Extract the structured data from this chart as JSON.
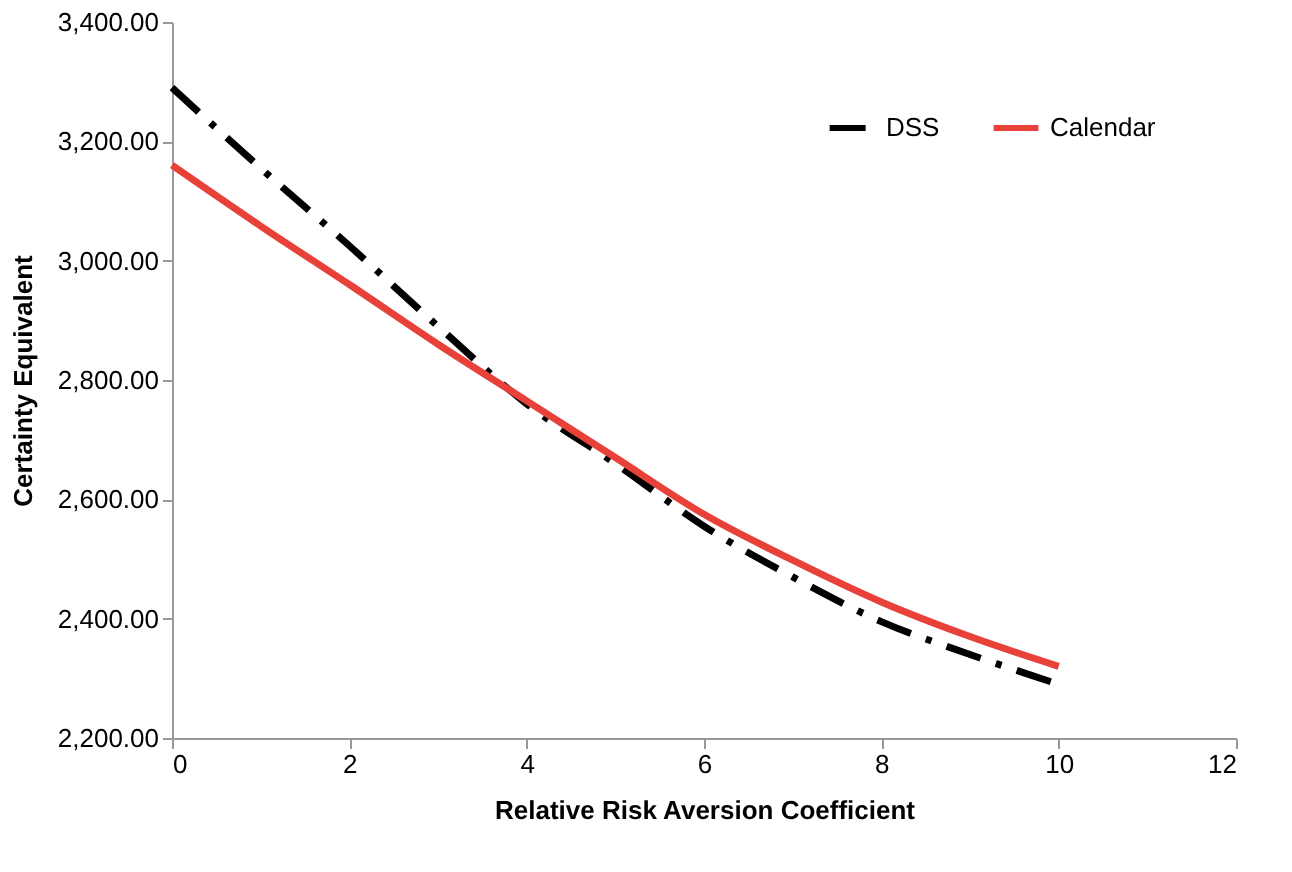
{
  "chart_data": {
    "type": "line",
    "xlabel": "Relative Risk Aversion Coefficient",
    "ylabel": "Certainty Equivalent",
    "x": [
      0,
      1,
      2,
      3,
      4,
      5,
      6,
      7,
      8,
      9,
      10
    ],
    "series": [
      {
        "name": "DSS",
        "color": "#000000",
        "line_style": "dashed",
        "values": [
          3290,
          3155,
          3025,
          2890,
          2760,
          2660,
          2555,
          2470,
          2395,
          2340,
          2290
        ]
      },
      {
        "name": "Calendar",
        "color": "#e8413a",
        "line_style": "solid",
        "values": [
          3160,
          3058,
          2960,
          2860,
          2765,
          2670,
          2575,
          2498,
          2428,
          2370,
          2320
        ]
      }
    ],
    "xlim": [
      0,
      12
    ],
    "xticks": [
      0,
      2,
      4,
      6,
      8,
      10,
      12
    ],
    "ylim": [
      2200,
      3400
    ],
    "yticks": [
      {
        "value": 2200,
        "label": "2,200.00"
      },
      {
        "value": 2400,
        "label": "2,400.00"
      },
      {
        "value": 2600,
        "label": "2,600.00"
      },
      {
        "value": 2800,
        "label": "2,800.00"
      },
      {
        "value": 3000,
        "label": "3,000.00"
      },
      {
        "value": 3200,
        "label": "3,200.00"
      },
      {
        "value": 3400,
        "label": "3,400.00"
      }
    ],
    "grid": false,
    "legend": "top right",
    "marker": "none"
  }
}
